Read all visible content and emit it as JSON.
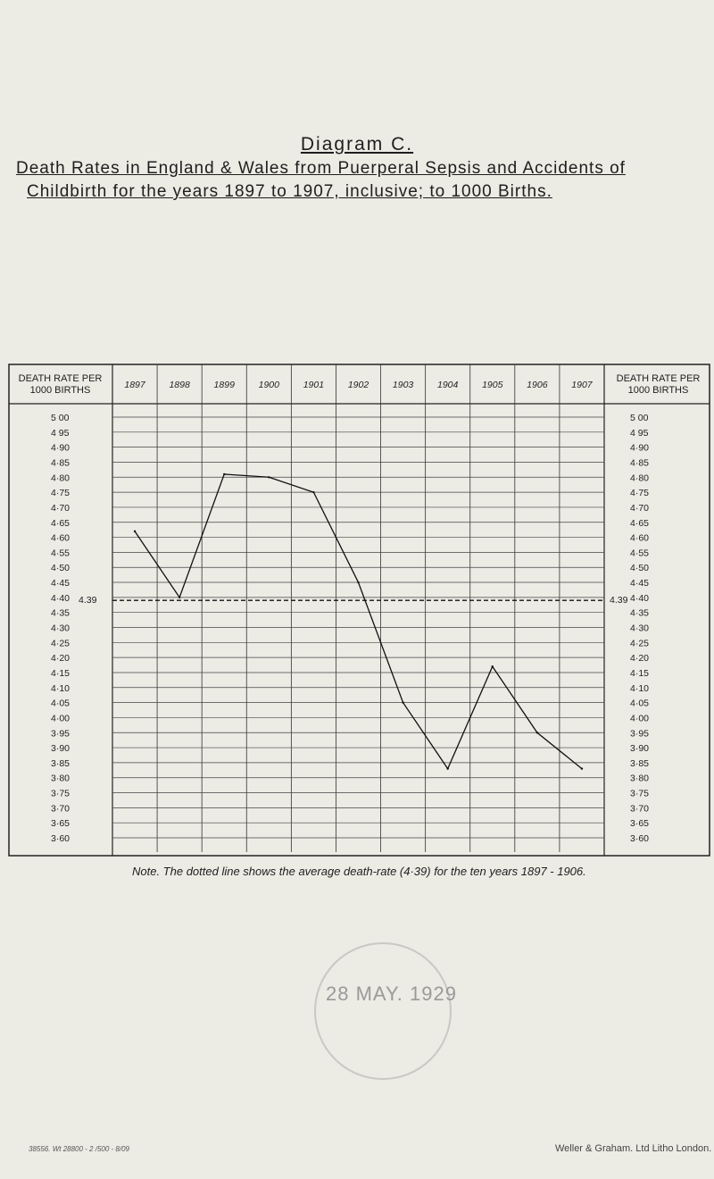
{
  "title": "Diagram C.",
  "subtitle_line1": "Death Rates in England & Wales from Puerperal Sepsis and Accidents of",
  "subtitle_line2": "Childbirth for the years 1897 to 1907, inclusive; to 1000 Births.",
  "left_header": "DEATH RATE PER 1000 BIRTHS",
  "right_header": "DEATH RATE PER 1000 BIRTHS",
  "average_label": "4.39",
  "note": "Note. The dotted line shows the average death-rate (4·39) for the ten years 1897 - 1906.",
  "stamp_text": "28 MAY. 1929",
  "printer_left": "38556. Wt 28800 - 2 /500 - 8/09",
  "printer_right": "Weller & Graham. Ltd Litho London.",
  "chart_data": {
    "type": "line",
    "title": "Death Rates in England & Wales from Puerperal Sepsis and Accidents of Childbirth for the years 1897 to 1907, inclusive; to 1000 Births.",
    "xlabel": "",
    "ylabel": "DEATH RATE PER 1000 BIRTHS",
    "categories": [
      "1897",
      "1898",
      "1899",
      "1900",
      "1901",
      "1902",
      "1903",
      "1904",
      "1905",
      "1906",
      "1907"
    ],
    "values": [
      4.62,
      4.4,
      4.81,
      4.8,
      4.75,
      4.45,
      4.05,
      3.83,
      4.17,
      3.95,
      3.83
    ],
    "average_line": 4.39,
    "ylim": [
      3.6,
      5.0
    ],
    "yticks": [
      "5 00",
      "4 95",
      "4·90",
      "4·85",
      "4·80",
      "4·75",
      "4·70",
      "4·65",
      "4·60",
      "4·55",
      "4·50",
      "4·45",
      "4·40",
      "4·35",
      "4·30",
      "4·25",
      "4·20",
      "4·15",
      "4·10",
      "4·05",
      "4·00",
      "3·95",
      "3·90",
      "3·85",
      "3·80",
      "3·75",
      "3·70",
      "3·65",
      "3·60"
    ],
    "grid": true,
    "legend": "none"
  }
}
